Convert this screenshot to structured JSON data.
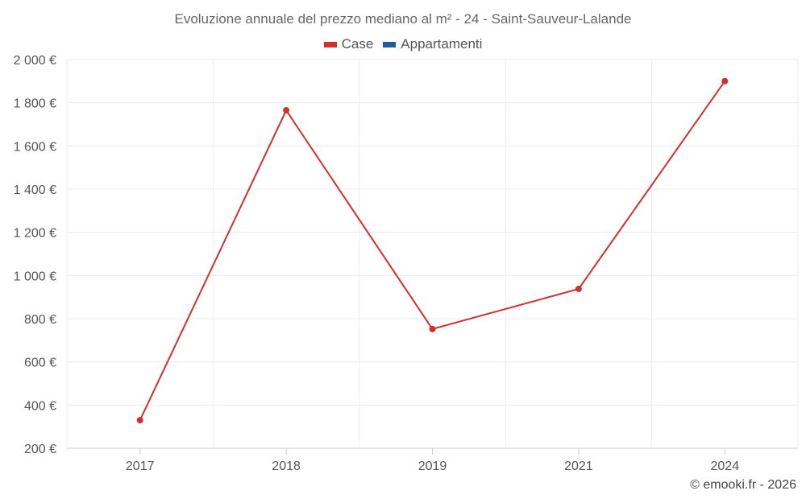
{
  "chart_data": {
    "type": "line",
    "title": "Evoluzione annuale del prezzo mediano al m² - 24 - Saint-Sauveur-Lalande",
    "categories": [
      "2017",
      "2018",
      "2019",
      "2021",
      "2024"
    ],
    "series": [
      {
        "name": "Case",
        "color": "#d32f2f",
        "values": [
          330,
          1765,
          752,
          938,
          1900
        ]
      },
      {
        "name": "Appartamenti",
        "color": "#1f5f99",
        "values": [
          null,
          null,
          null,
          null,
          null
        ]
      }
    ],
    "yticks": [
      200,
      400,
      600,
      800,
      1000,
      1200,
      1400,
      1600,
      1800,
      2000
    ],
    "ytick_labels": [
      "200 €",
      "400 €",
      "600 €",
      "800 €",
      "1 000 €",
      "1 200 €",
      "1 400 €",
      "1 600 €",
      "1 800 €",
      "2 000 €"
    ],
    "ylim": [
      200,
      2000
    ],
    "grid": true,
    "legend_position": "top-center"
  },
  "credit": "© emooki.fr - 2026"
}
